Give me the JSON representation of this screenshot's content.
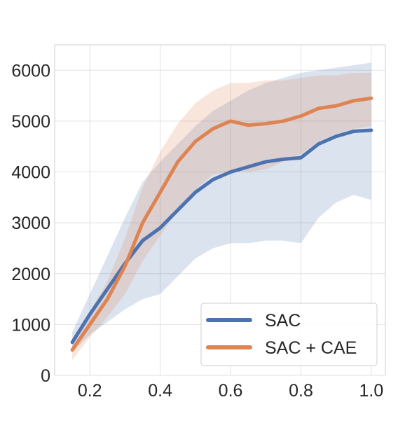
{
  "chart_data": {
    "type": "line",
    "title": "",
    "xlabel": "",
    "ylabel": "",
    "xlim": [
      0.1,
      1.04
    ],
    "ylim": [
      0,
      6500
    ],
    "x_ticks": [
      0.2,
      0.4,
      0.6,
      0.8,
      1.0
    ],
    "x_tick_labels": [
      "0.2",
      "0.4",
      "0.6",
      "0.8",
      "1.0"
    ],
    "y_ticks": [
      0,
      1000,
      2000,
      3000,
      4000,
      5000,
      6000
    ],
    "y_tick_labels": [
      "0",
      "1000",
      "2000",
      "3000",
      "4000",
      "5000",
      "6000"
    ],
    "grid": true,
    "legend_position": "bottom-right",
    "x": [
      0.15,
      0.2,
      0.25,
      0.3,
      0.35,
      0.4,
      0.45,
      0.5,
      0.55,
      0.6,
      0.65,
      0.7,
      0.75,
      0.8,
      0.85,
      0.9,
      0.95,
      1.0
    ],
    "series": [
      {
        "name": "SAC",
        "color": "#4c72b0",
        "values": [
          650,
          1200,
          1700,
          2200,
          2650,
          2900,
          3250,
          3600,
          3850,
          4000,
          4100,
          4200,
          4250,
          4280,
          4550,
          4700,
          4800,
          4820
        ],
        "lower": [
          450,
          800,
          1050,
          1300,
          1500,
          1600,
          1950,
          2300,
          2500,
          2600,
          2600,
          2650,
          2650,
          2600,
          3100,
          3400,
          3550,
          3450
        ],
        "upper": [
          850,
          1600,
          2350,
          3100,
          3800,
          4200,
          4550,
          4900,
          5200,
          5400,
          5600,
          5750,
          5850,
          5950,
          6000,
          6050,
          6100,
          6150
        ]
      },
      {
        "name": "SAC + CAE",
        "color": "#dd8452",
        "values": [
          500,
          1000,
          1500,
          2150,
          3000,
          3600,
          4200,
          4600,
          4850,
          5000,
          4920,
          4950,
          5000,
          5100,
          5250,
          5300,
          5400,
          5450
        ],
        "lower": [
          300,
          750,
          1150,
          1600,
          2250,
          2750,
          3250,
          3650,
          3950,
          4000,
          4000,
          4050,
          4200,
          4350,
          4600,
          4750,
          4850,
          4900
        ],
        "upper": [
          700,
          1250,
          1850,
          2700,
          3700,
          4400,
          4950,
          5350,
          5600,
          5750,
          5750,
          5800,
          5800,
          5850,
          5900,
          5900,
          5950,
          5950
        ]
      }
    ]
  }
}
